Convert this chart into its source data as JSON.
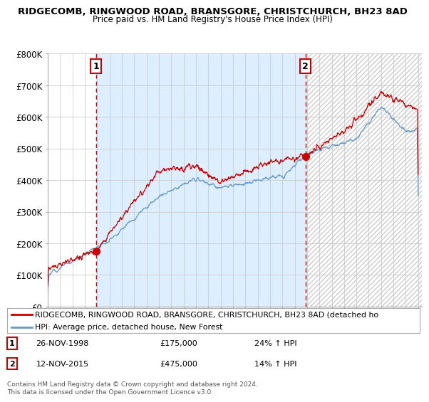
{
  "title": "RIDGECOMB, RINGWOOD ROAD, BRANSGORE, CHRISTCHURCH, BH23 8AD",
  "subtitle": "Price paid vs. HM Land Registry's House Price Index (HPI)",
  "ylabel_ticks": [
    "£0",
    "£100K",
    "£200K",
    "£300K",
    "£400K",
    "£500K",
    "£600K",
    "£700K",
    "£800K"
  ],
  "ytick_values": [
    0,
    100000,
    200000,
    300000,
    400000,
    500000,
    600000,
    700000,
    800000
  ],
  "ylim": [
    0,
    800000
  ],
  "sale1_year": 1998.9,
  "sale1_price": 175000,
  "sale1_label": "1",
  "sale1_date": "26-NOV-1998",
  "sale1_amount": "£175,000",
  "sale1_hpi": "24% ↑ HPI",
  "sale2_year": 2015.87,
  "sale2_price": 475000,
  "sale2_label": "2",
  "sale2_date": "12-NOV-2015",
  "sale2_amount": "£475,000",
  "sale2_hpi": "14% ↑ HPI",
  "red_line_color": "#cc0000",
  "blue_line_color": "#6699cc",
  "vline_color": "#cc0000",
  "marker_color": "#cc0000",
  "shade_color": "#ddeeff",
  "hatch_color": "#cccccc",
  "legend_line1": "RIDGECOMB, RINGWOOD ROAD, BRANSGORE, CHRISTCHURCH, BH23 8AD (detached ho",
  "legend_line2": "HPI: Average price, detached house, New Forest",
  "footer": "Contains HM Land Registry data © Crown copyright and database right 2024.\nThis data is licensed under the Open Government Licence v3.0.",
  "background_color": "#ffffff",
  "grid_color": "#cccccc"
}
